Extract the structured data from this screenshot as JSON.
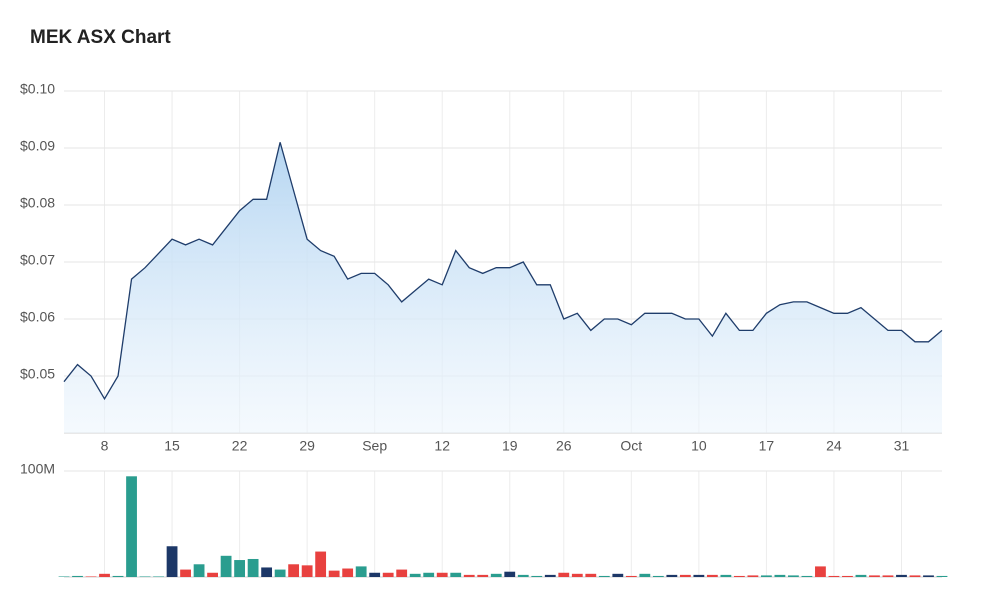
{
  "chart_data": [
    {
      "type": "area",
      "title": "MEK ASX Chart",
      "color": "#1f3d6b",
      "fill": "#bcdaf3",
      "grid": true,
      "categories": [
        null,
        null,
        null,
        "8",
        null,
        null,
        null,
        null,
        "15",
        null,
        null,
        null,
        null,
        "22",
        null,
        null,
        null,
        null,
        "29",
        null,
        null,
        null,
        null,
        "Sep",
        null,
        null,
        null,
        null,
        "12",
        null,
        null,
        null,
        null,
        "19",
        null,
        null,
        null,
        "26",
        null,
        null,
        null,
        null,
        "Oct",
        null,
        null,
        null,
        null,
        "10",
        null,
        null,
        null,
        null,
        "17",
        null,
        null,
        null,
        null,
        "24",
        null,
        null,
        null,
        null,
        "31",
        null,
        null,
        null
      ],
      "values": [
        0.049,
        0.052,
        0.05,
        0.046,
        0.05,
        0.067,
        0.069,
        0.0715,
        0.074,
        0.073,
        0.074,
        0.073,
        0.076,
        0.079,
        0.081,
        0.081,
        0.091,
        0.0825,
        0.074,
        0.072,
        0.071,
        0.067,
        0.068,
        0.068,
        0.066,
        0.063,
        0.065,
        0.067,
        0.066,
        0.072,
        0.069,
        0.068,
        0.069,
        0.069,
        0.07,
        0.066,
        0.066,
        0.06,
        0.061,
        0.058,
        0.06,
        0.06,
        0.059,
        0.061,
        0.061,
        0.061,
        0.06,
        0.06,
        0.057,
        0.061,
        0.058,
        0.058,
        0.061,
        0.0625,
        0.063,
        0.063,
        0.062,
        0.061,
        0.061,
        0.062,
        0.06,
        0.058,
        0.058,
        0.056,
        0.056,
        0.058
      ],
      "ylim": [
        0.04,
        0.1
      ],
      "yticks": [
        {
          "value": 0.05,
          "label": "$0.05"
        },
        {
          "value": 0.06,
          "label": "$0.06"
        },
        {
          "value": 0.07,
          "label": "$0.07"
        },
        {
          "value": 0.08,
          "label": "$0.08"
        },
        {
          "value": 0.09,
          "label": "$0.09"
        },
        {
          "value": 0.1,
          "label": "$0.10"
        }
      ]
    },
    {
      "type": "bar",
      "grid": true,
      "values": [
        500000,
        1000000,
        500000,
        3000000,
        1000000,
        95000000,
        500000,
        500000,
        29000000,
        7000000,
        12000000,
        4000000,
        20000000,
        16000000,
        17000000,
        9000000,
        7000000,
        12000000,
        11000000,
        24000000,
        6000000,
        8000000,
        10000000,
        4000000,
        4000000,
        7000000,
        3000000,
        4000000,
        4000000,
        4000000,
        2000000,
        2000000,
        3000000,
        5000000,
        2000000,
        1000000,
        2000000,
        4000000,
        3000000,
        3000000,
        1000000,
        3000000,
        1000000,
        3000000,
        1000000,
        2000000,
        2000000,
        2000000,
        2000000,
        2000000,
        1000000,
        1500000,
        1500000,
        2000000,
        1500000,
        1000000,
        10000000,
        1000000,
        1000000,
        2000000,
        1500000,
        1500000,
        2000000,
        1500000,
        1500000,
        1000000
      ],
      "colors": [
        "#2a9d8f",
        "#2a9d8f",
        "#e8413f",
        "#e8413f",
        "#2a9d8f",
        "#2a9d8f",
        "#2a9d8f",
        "#2a9d8f",
        "#1c3767",
        "#e8413f",
        "#2a9d8f",
        "#e8413f",
        "#2a9d8f",
        "#2a9d8f",
        "#2a9d8f",
        "#1c3767",
        "#2a9d8f",
        "#e8413f",
        "#e8413f",
        "#e8413f",
        "#e8413f",
        "#e8413f",
        "#2a9d8f",
        "#1c3767",
        "#e8413f",
        "#e8413f",
        "#2a9d8f",
        "#2a9d8f",
        "#e8413f",
        "#2a9d8f",
        "#e8413f",
        "#e8413f",
        "#2a9d8f",
        "#1c3767",
        "#2a9d8f",
        "#2a9d8f",
        "#1c3767",
        "#e8413f",
        "#e8413f",
        "#e8413f",
        "#2a9d8f",
        "#1c3767",
        "#e8413f",
        "#2a9d8f",
        "#2a9d8f",
        "#1c3767",
        "#e8413f",
        "#1c3767",
        "#e8413f",
        "#2a9d8f",
        "#e8413f",
        "#e8413f",
        "#2a9d8f",
        "#2a9d8f",
        "#2a9d8f",
        "#2a9d8f",
        "#e8413f",
        "#e8413f",
        "#e8413f",
        "#2a9d8f",
        "#e8413f",
        "#e8413f",
        "#1c3767",
        "#e8413f",
        "#1c3767",
        "#2a9d8f"
      ],
      "ylim": [
        0,
        100000000
      ],
      "yticks": [
        {
          "value": 100000000,
          "label": "100M"
        }
      ]
    }
  ]
}
